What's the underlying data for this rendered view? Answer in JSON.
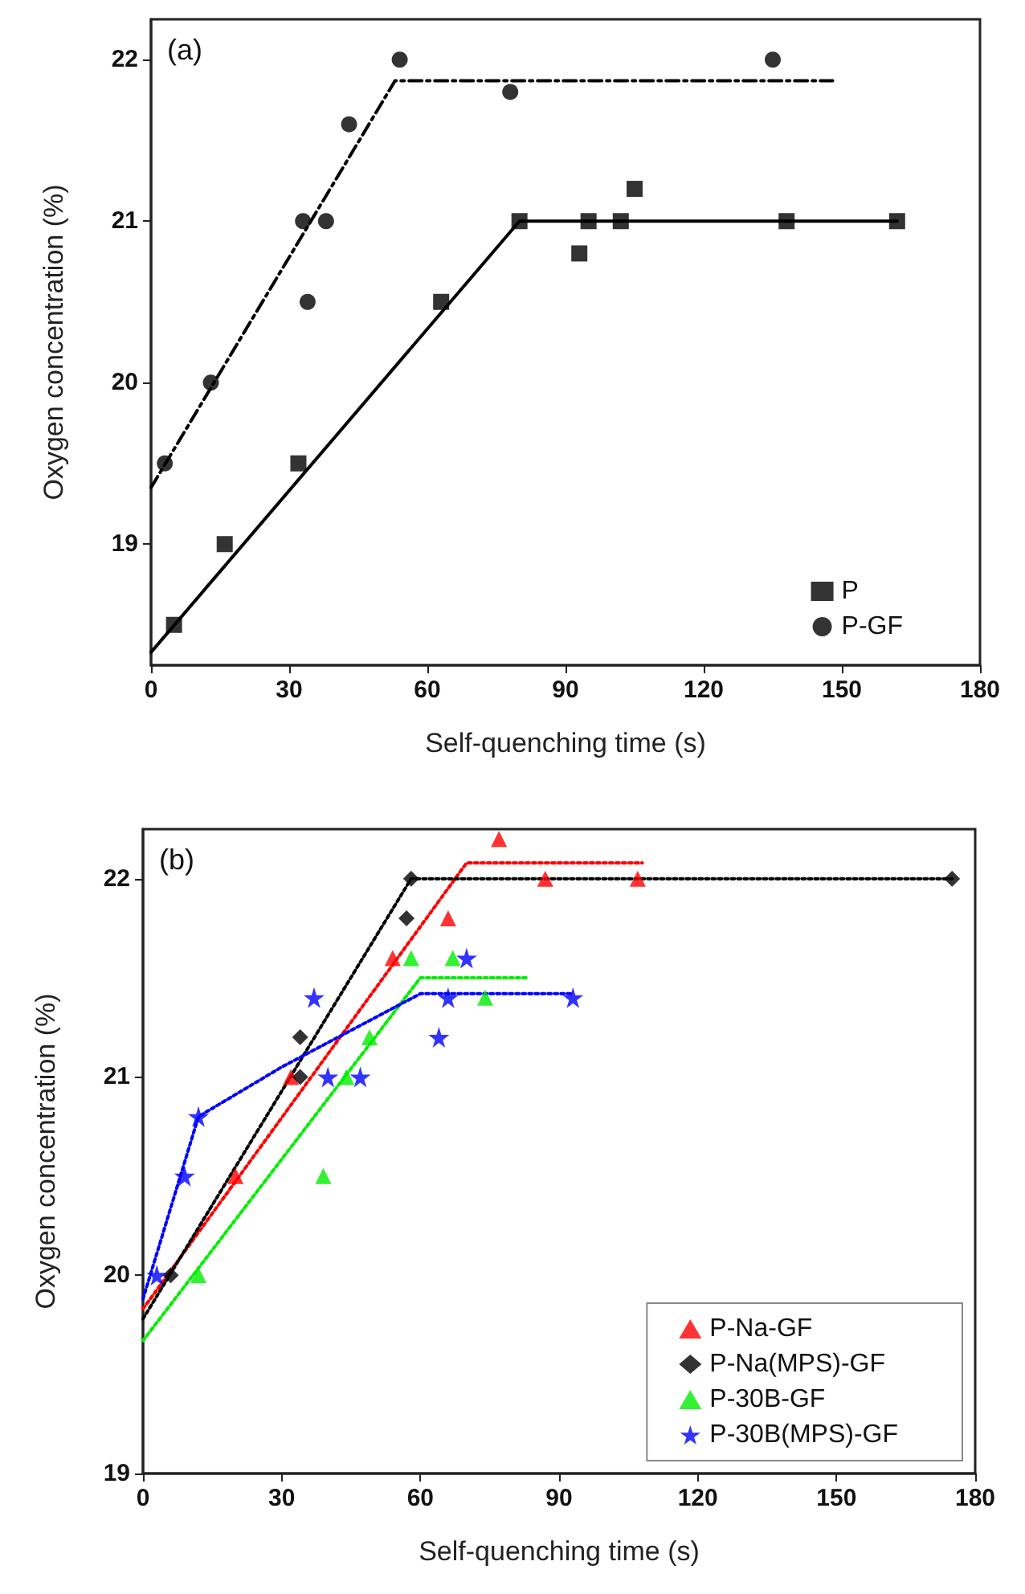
{
  "chart_data": [
    {
      "type": "scatter",
      "annotations": [
        "(a)"
      ],
      "xlabel": "Self-quenching time (s)",
      "ylabel": "Oxygen concentration (%)",
      "xlim": [
        0,
        180
      ],
      "xticks": [
        0,
        30,
        60,
        90,
        120,
        150,
        180
      ],
      "ylim": [
        18.25,
        22.25
      ],
      "yticks": [
        19,
        20,
        21,
        22
      ],
      "grid": false,
      "legend": "bottom right",
      "series": [
        {
          "name": "P",
          "marker": "square",
          "color": "#000000",
          "x": [
            5,
            16,
            32,
            63,
            80,
            93,
            95,
            102,
            105,
            138,
            162
          ],
          "values": [
            18.5,
            19,
            19.5,
            20.5,
            21,
            20.8,
            21,
            21,
            21.2,
            21,
            21
          ]
        },
        {
          "name": "P-GF",
          "marker": "circle",
          "color": "#000000",
          "x": [
            3,
            13,
            33,
            34,
            38,
            43,
            54,
            78,
            135
          ],
          "values": [
            19.5,
            20,
            21,
            20.5,
            21,
            21.6,
            22,
            21.8,
            22
          ]
        },
        {
          "type": "line",
          "marker": "none",
          "line_style": "solid",
          "color": "#000000",
          "x": [
            0,
            80,
            162
          ],
          "values": [
            18.33,
            21,
            21
          ]
        },
        {
          "type": "line",
          "marker": "none",
          "line_style": "dashed",
          "color": "#000000",
          "x": [
            0,
            53,
            148
          ],
          "values": [
            19.35,
            21.87,
            21.87
          ]
        }
      ]
    },
    {
      "type": "scatter",
      "annotations": [
        "(b)"
      ],
      "xlabel": "Self-quenching time (s)",
      "ylabel": "Oxygen concentration (%)",
      "xlim": [
        0,
        180
      ],
      "xticks": [
        0,
        30,
        60,
        90,
        120,
        150,
        180
      ],
      "ylim": [
        19,
        22.25
      ],
      "yticks": [
        19,
        20,
        21,
        22
      ],
      "grid": false,
      "legend": "bottom right",
      "series": [
        {
          "name": "P-Na-GF",
          "marker": "triangle",
          "color": "#ff0000",
          "x": [
            20,
            32,
            54,
            66,
            77,
            87,
            107
          ],
          "values": [
            20.5,
            21,
            21.6,
            21.8,
            22.2,
            22,
            22
          ]
        },
        {
          "name": "P-Na(MPS)-GF",
          "marker": "diamond",
          "color": "#000000",
          "x": [
            6,
            34,
            34,
            57,
            58,
            175
          ],
          "values": [
            20,
            21,
            21.2,
            21.8,
            22,
            22
          ]
        },
        {
          "name": "P-30B-GF",
          "marker": "triangle",
          "color": "#00ee00",
          "x": [
            12,
            39,
            44,
            49,
            58,
            67,
            74
          ],
          "values": [
            20,
            20.5,
            21,
            21.2,
            21.6,
            21.6,
            21.4
          ]
        },
        {
          "name": "P-30B(MPS)-GF",
          "marker": "star",
          "color": "#0000ff",
          "x": [
            3,
            9,
            12,
            37,
            40,
            47,
            64,
            66,
            70,
            93
          ],
          "values": [
            20,
            20.5,
            20.8,
            21.4,
            21,
            21,
            21.2,
            21.4,
            21.6,
            21.4
          ]
        },
        {
          "type": "line",
          "marker": "none",
          "line_style": "dotted",
          "color": "#ff0000",
          "x": [
            0,
            70,
            108
          ],
          "values": [
            19.83,
            22.08,
            22.08
          ]
        },
        {
          "type": "line",
          "marker": "none",
          "line_style": "dotted",
          "color": "#000000",
          "x": [
            0,
            58,
            175
          ],
          "values": [
            19.78,
            22,
            22
          ]
        },
        {
          "type": "line",
          "marker": "none",
          "line_style": "dotted",
          "color": "#00ee00",
          "x": [
            0,
            60,
            83
          ],
          "values": [
            19.67,
            21.5,
            21.5
          ]
        },
        {
          "type": "line",
          "marker": "none",
          "line_style": "dotted",
          "color": "#0000ff",
          "x": [
            0,
            12,
            30,
            60,
            93
          ],
          "values": [
            19.88,
            20.8,
            21.05,
            21.42,
            21.42
          ]
        }
      ]
    }
  ]
}
